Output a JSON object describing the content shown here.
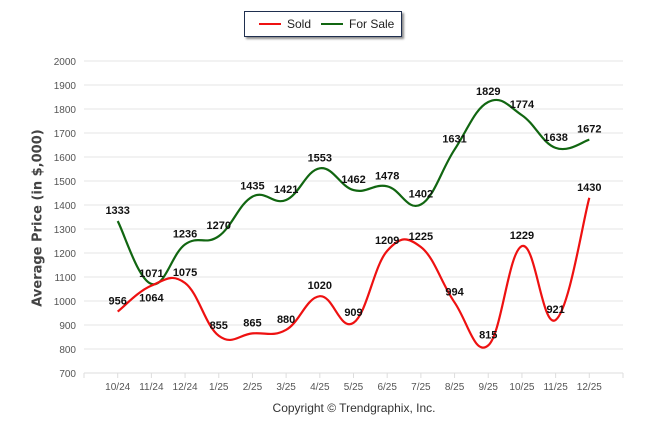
{
  "chart_data": {
    "type": "line",
    "title": "",
    "xlabel": "",
    "ylabel": "Average Price (in $,000)",
    "ylim": [
      700,
      2000
    ],
    "yticks": [
      2000,
      1900,
      1800,
      1700,
      1600,
      1500,
      1400,
      1300,
      1200,
      1100,
      1000,
      900,
      800,
      700
    ],
    "grid": true,
    "legend_position": "top-center",
    "categories": [
      "10/24",
      "11/24",
      "12/24",
      "1/25",
      "2/25",
      "3/25",
      "4/25",
      "5/25",
      "6/25",
      "7/25",
      "8/25",
      "9/25",
      "10/25",
      "11/25",
      "12/25"
    ],
    "series": [
      {
        "name": "Sold",
        "color": "#ee1111",
        "values": [
          956,
          1064,
          1075,
          855,
          865,
          880,
          1020,
          909,
          1209,
          1225,
          994,
          815,
          1229,
          921,
          1430
        ]
      },
      {
        "name": "For Sale",
        "color": "#116611",
        "values": [
          1333,
          1071,
          1236,
          1270,
          1435,
          1421,
          1553,
          1462,
          1478,
          1402,
          1631,
          1829,
          1774,
          1638,
          1672
        ]
      }
    ]
  },
  "legend": {
    "items": [
      {
        "label": "Sold"
      },
      {
        "label": "For Sale"
      }
    ]
  },
  "footer": {
    "copyright": "Copyright © Trendgraphix, Inc."
  }
}
